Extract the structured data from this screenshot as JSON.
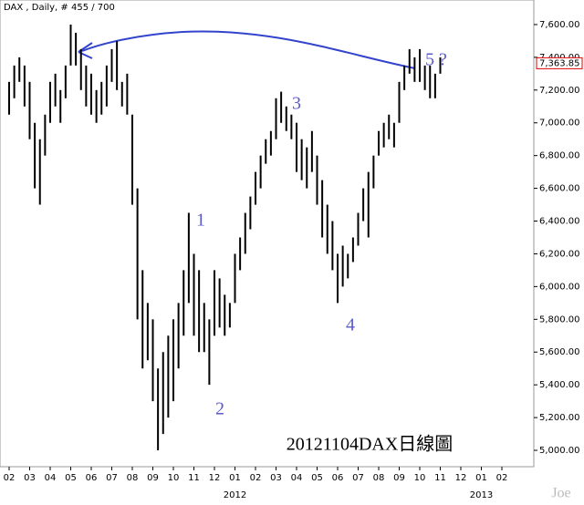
{
  "chart_data": {
    "type": "hilo",
    "title": "DAX , Daily, # 455 / 700",
    "color": "#000000",
    "categories": [
      "02",
      null,
      null,
      null,
      "03",
      null,
      null,
      null,
      "04",
      null,
      null,
      null,
      "05",
      null,
      null,
      null,
      "06",
      null,
      null,
      null,
      "07",
      null,
      null,
      null,
      "08",
      null,
      null,
      null,
      "09",
      null,
      null,
      null,
      "10",
      null,
      null,
      null,
      "11",
      null,
      null,
      null,
      "12",
      null,
      null,
      null,
      "01",
      null,
      null,
      null,
      "02",
      null,
      null,
      null,
      "03",
      null,
      null,
      null,
      "04",
      null,
      null,
      null,
      "05",
      null,
      null,
      null,
      "06",
      null,
      null,
      null,
      "07",
      null,
      null,
      null,
      "08",
      null,
      null,
      null,
      "09",
      null,
      null,
      null,
      "10",
      null,
      null,
      null,
      "11",
      null,
      null,
      null,
      "12",
      null,
      null,
      null,
      "01",
      null,
      null,
      null,
      "02",
      null,
      null,
      null
    ],
    "year_labels": [
      "2012",
      "2013"
    ],
    "high": [
      7250,
      7350,
      7400,
      7350,
      7250,
      7000,
      6900,
      7050,
      7250,
      7300,
      7200,
      7350,
      7600,
      7550,
      7450,
      7350,
      7300,
      7200,
      7250,
      7350,
      7450,
      7500,
      7250,
      7300,
      7050,
      6600,
      6100,
      5900,
      5800,
      5500,
      5600,
      5700,
      5800,
      5900,
      6100,
      6450,
      6200,
      6100,
      5900,
      5800,
      6100,
      6050,
      5950,
      5900,
      6200,
      6300,
      6450,
      6550,
      6700,
      6800,
      6900,
      6950,
      7150,
      7190,
      7100,
      7050,
      7000,
      6900,
      6850,
      6950,
      6800,
      6650,
      6500,
      6400,
      6200,
      6250,
      6200,
      6300,
      6450,
      6600,
      6700,
      6800,
      6950,
      7000,
      7050,
      7000,
      7250,
      7350,
      7450,
      7400,
      7450,
      7350,
      7350,
      7300,
      7400,
      null,
      null,
      null,
      null,
      null,
      null,
      null,
      null,
      null,
      null,
      null,
      null,
      null,
      null,
      null
    ],
    "low": [
      7050,
      7150,
      7250,
      7100,
      6900,
      6600,
      6500,
      6800,
      7000,
      7100,
      7000,
      7150,
      7350,
      7350,
      7200,
      7100,
      7050,
      7000,
      7050,
      7100,
      7250,
      7200,
      7100,
      7050,
      6500,
      5800,
      5500,
      5550,
      5300,
      5000,
      5100,
      5200,
      5300,
      5500,
      5700,
      5900,
      5700,
      5600,
      5600,
      5400,
      5700,
      5750,
      5700,
      5750,
      5900,
      6100,
      6200,
      6350,
      6500,
      6600,
      6750,
      6800,
      6900,
      7000,
      6950,
      6900,
      6700,
      6650,
      6600,
      6700,
      6500,
      6300,
      6200,
      6100,
      5900,
      6000,
      6050,
      6150,
      6250,
      6400,
      6300,
      6600,
      6800,
      6850,
      6900,
      6850,
      7000,
      7200,
      7300,
      7250,
      7250,
      7200,
      7150,
      7150,
      7300,
      null,
      null,
      null,
      null,
      null,
      null,
      null,
      null,
      null,
      null,
      null,
      null,
      null,
      null,
      null
    ],
    "ylim": [
      4900,
      7750
    ],
    "yticks": [
      {
        "value": 5000,
        "label": "5,000.00"
      },
      {
        "value": 5200,
        "label": "5,200.00"
      },
      {
        "value": 5400,
        "label": "5,400.00"
      },
      {
        "value": 5600,
        "label": "5,600.00"
      },
      {
        "value": 5800,
        "label": "5,800.00"
      },
      {
        "value": 6000,
        "label": "6,000.00"
      },
      {
        "value": 6200,
        "label": "6,200.00"
      },
      {
        "value": 6400,
        "label": "6,400.00"
      },
      {
        "value": 6600,
        "label": "6,600.00"
      },
      {
        "value": 6800,
        "label": "6,800.00"
      },
      {
        "value": 7000,
        "label": "7,000.00"
      },
      {
        "value": 7200,
        "label": "7,200.00"
      },
      {
        "value": 7400,
        "label": "7,400.00"
      },
      {
        "value": 7600,
        "label": "7,600.00"
      }
    ],
    "last_price": {
      "value": 7363.85,
      "label": "7,363.85"
    },
    "annotations": [
      "1",
      "2",
      "3",
      "4",
      "5 ?"
    ],
    "caption": "20121104DAX日線圖",
    "watermark": "Joe"
  }
}
